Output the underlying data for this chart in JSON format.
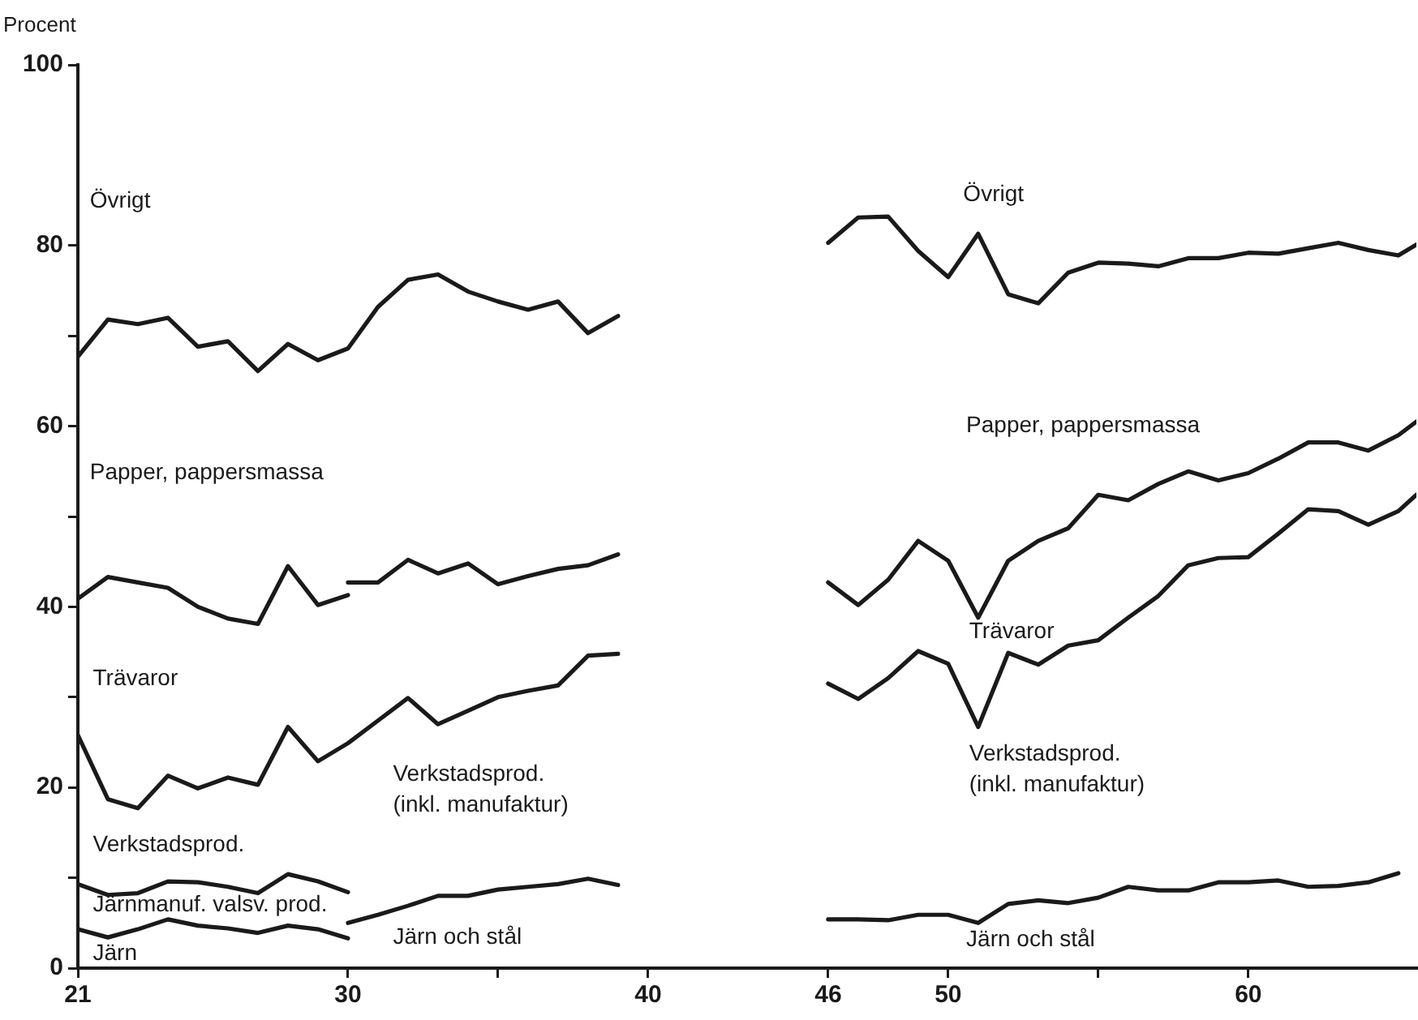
{
  "chart_data": {
    "type": "line",
    "ylabel": "Procent",
    "xlim": [
      21,
      65.6
    ],
    "ylim": [
      0,
      100
    ],
    "xticks": [
      21,
      30,
      {
        "value": 35,
        "label": null
      },
      40,
      46,
      50,
      {
        "value": 55,
        "label": null
      },
      60
    ],
    "yticks": [
      0,
      {
        "value": 10,
        "label": null
      },
      20,
      {
        "value": 30,
        "label": null
      },
      40,
      {
        "value": 50,
        "label": null
      },
      60,
      {
        "value": 70,
        "label": null
      },
      80,
      100
    ],
    "grid": false,
    "legend": false,
    "marker": "none",
    "line_style": "solid",
    "annotations": [
      "Övrigt",
      "Övrigt",
      "Papper, pappersmassa",
      "Papper, pappersmassa",
      "Trävaror",
      "Trävaror",
      "Verkstadsprod.\n(inkl. manufaktur)",
      "Verkstadsprod.\n(inkl. manufaktur)",
      "Verkstadsprod.",
      "Järnmanuf. valsv. prod.",
      "Järn",
      "Järn och stål",
      "Järn och stål"
    ],
    "series": [
      {
        "color": "#1a1a1a",
        "x": [
          21,
          22,
          23,
          24,
          25,
          26,
          27,
          28,
          29,
          30,
          31,
          32,
          33,
          34,
          35,
          36,
          37,
          38,
          39
        ],
        "values": [
          67.7,
          71.8,
          71.3,
          72,
          68.8,
          69.4,
          66.1,
          69.1,
          67.3,
          68.6,
          73.2,
          76.2,
          76.8,
          74.9,
          73.8,
          72.9,
          73.8,
          70.3,
          72.2
        ]
      },
      {
        "color": "#1a1a1a",
        "x": [
          21,
          22,
          23,
          24,
          25,
          26,
          27,
          28,
          29,
          30
        ],
        "values": [
          40.9,
          43.3,
          42.7,
          42.1,
          40,
          38.7,
          38.1,
          44.5,
          40.2,
          41.3
        ]
      },
      {
        "color": "#1a1a1a",
        "x": [
          30,
          31,
          32,
          33,
          34,
          35,
          36,
          37,
          38,
          39
        ],
        "values": [
          42.7,
          42.7,
          45.2,
          43.7,
          44.8,
          42.5,
          43.4,
          44.2,
          44.6,
          45.8
        ]
      },
      {
        "color": "#1a1a1a",
        "x": [
          21,
          22,
          23,
          24,
          25,
          26,
          27,
          28,
          29,
          30,
          31,
          32,
          33,
          34,
          35,
          36,
          37,
          38,
          39
        ],
        "values": [
          25.8,
          18.7,
          17.7,
          21.3,
          19.9,
          21.1,
          20.3,
          26.7,
          22.9,
          24.9,
          27.4,
          29.9,
          27,
          28.5,
          30,
          30.7,
          31.3,
          34.6,
          34.8
        ]
      },
      {
        "color": "#1a1a1a",
        "x": [
          21,
          22,
          23,
          24,
          25,
          26,
          27,
          28,
          29,
          30
        ],
        "values": [
          9.3,
          8.1,
          8.3,
          9.6,
          9.5,
          9,
          8.3,
          10.4,
          9.6,
          8.4
        ]
      },
      {
        "color": "#1a1a1a",
        "x": [
          21,
          22,
          23,
          24,
          25,
          26,
          27,
          28,
          29,
          30
        ],
        "values": [
          4.3,
          3.4,
          4.3,
          5.4,
          4.7,
          4.4,
          3.9,
          4.7,
          4.3,
          3.3
        ]
      },
      {
        "color": "#1a1a1a",
        "x": [
          30,
          31,
          32,
          33,
          34,
          35,
          36,
          37,
          38,
          39
        ],
        "values": [
          5,
          5.9,
          6.9,
          8,
          8,
          8.7,
          9,
          9.3,
          9.9,
          9.2
        ]
      },
      {
        "color": "#1a1a1a",
        "x": [
          46,
          47,
          48,
          49,
          50,
          51,
          52,
          53,
          54,
          55,
          56,
          57,
          58,
          59,
          60,
          61,
          62,
          63,
          64,
          65,
          65.6
        ],
        "values": [
          80.3,
          83.1,
          83.2,
          79.4,
          76.5,
          81.3,
          74.6,
          73.6,
          77,
          78.1,
          78,
          77.7,
          78.6,
          78.6,
          79.2,
          79.1,
          79.7,
          80.3,
          79.5,
          78.9,
          80.1
        ]
      },
      {
        "color": "#1a1a1a",
        "x": [
          46,
          47,
          48,
          49,
          50,
          51,
          52,
          53,
          54,
          55,
          56,
          57,
          58,
          59,
          60,
          61,
          62,
          63,
          64,
          65,
          65.6
        ],
        "values": [
          42.7,
          40.2,
          43,
          47.3,
          45.1,
          38.8,
          45.1,
          47.3,
          48.7,
          52.4,
          51.8,
          53.6,
          55,
          54,
          54.8,
          56.4,
          58.2,
          58.2,
          57.3,
          59,
          60.5
        ]
      },
      {
        "color": "#1a1a1a",
        "x": [
          46,
          47,
          48,
          49,
          50,
          51,
          52,
          53,
          54,
          55,
          56,
          57,
          58,
          59,
          60,
          61,
          62,
          63,
          64,
          65,
          65.6
        ],
        "values": [
          31.5,
          29.8,
          32.1,
          35.1,
          33.7,
          26.7,
          34.9,
          33.6,
          35.7,
          36.3,
          38.8,
          41.2,
          44.6,
          45.4,
          45.5,
          48.1,
          50.8,
          50.6,
          49.1,
          50.6,
          52.4
        ]
      },
      {
        "color": "#1a1a1a",
        "x": [
          46,
          47,
          48,
          49,
          50,
          51,
          52,
          53,
          54,
          55,
          56,
          57,
          58,
          59,
          60,
          61,
          62,
          63,
          64,
          65
        ],
        "values": [
          5.4,
          5.4,
          5.3,
          5.9,
          5.9,
          5,
          7.1,
          7.5,
          7.2,
          7.8,
          9,
          8.6,
          8.6,
          9.5,
          9.5,
          9.7,
          9,
          9.1,
          9.5,
          10.5
        ]
      }
    ]
  }
}
